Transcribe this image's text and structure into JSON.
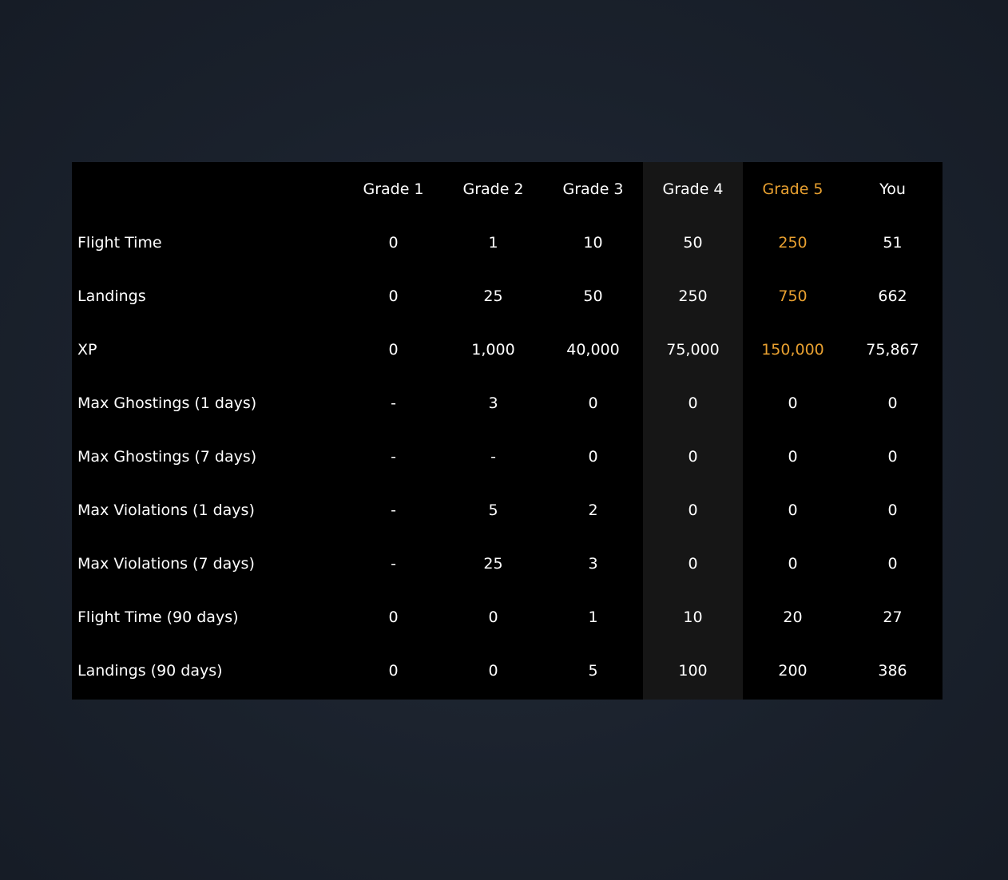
{
  "colors": {
    "accent": "#e8a030",
    "table_bg": "#000000",
    "highlight_column_bg": "#161616"
  },
  "headers": [
    "Grade 1",
    "Grade 2",
    "Grade 3",
    "Grade 4",
    "Grade 5",
    "You"
  ],
  "rows": [
    {
      "label": "Flight Time",
      "values": [
        "0",
        "1",
        "10",
        "50",
        "250",
        "51"
      ],
      "grade5_highlight": true
    },
    {
      "label": "Landings",
      "values": [
        "0",
        "25",
        "50",
        "250",
        "750",
        "662"
      ],
      "grade5_highlight": true
    },
    {
      "label": "XP",
      "values": [
        "0",
        "1,000",
        "40,000",
        "75,000",
        "150,000",
        "75,867"
      ],
      "grade5_highlight": true
    },
    {
      "label": "Max Ghostings (1 days)",
      "values": [
        "-",
        "3",
        "0",
        "0",
        "0",
        "0"
      ]
    },
    {
      "label": "Max Ghostings (7 days)",
      "values": [
        "-",
        "-",
        "0",
        "0",
        "0",
        "0"
      ]
    },
    {
      "label": "Max Violations (1 days)",
      "values": [
        "-",
        "5",
        "2",
        "0",
        "0",
        "0"
      ]
    },
    {
      "label": "Max Violations (7 days)",
      "values": [
        "-",
        "25",
        "3",
        "0",
        "0",
        "0"
      ]
    },
    {
      "label": "Flight Time (90 days)",
      "values": [
        "0",
        "0",
        "1",
        "10",
        "20",
        "27"
      ]
    },
    {
      "label": "Landings (90 days)",
      "values": [
        "0",
        "0",
        "5",
        "100",
        "200",
        "386"
      ]
    }
  ]
}
